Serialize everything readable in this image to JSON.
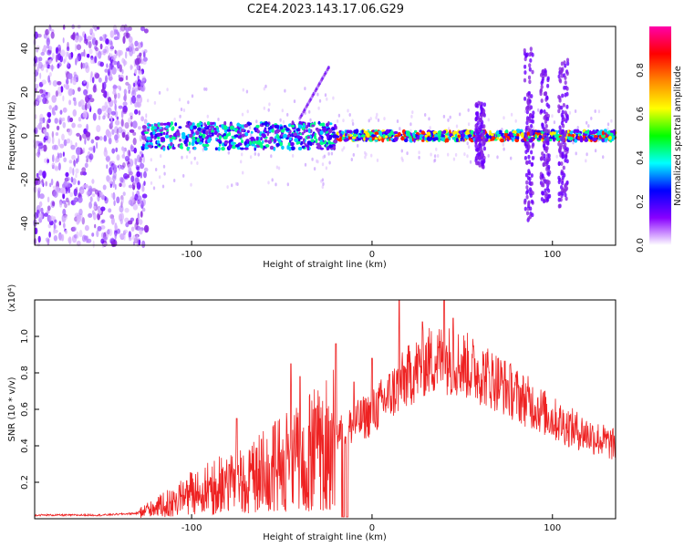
{
  "title": "C2E4.2023.143.17.06.G29",
  "chart_data": [
    {
      "type": "heatmap",
      "xlabel": "Height of straight line (km)",
      "ylabel": "Frequency (Hz)",
      "xlim": [
        -187,
        135
      ],
      "ylim": [
        -50,
        50
      ],
      "x_ticks": [
        -100,
        0,
        100
      ],
      "y_ticks": [
        -40,
        -20,
        0,
        20,
        40
      ],
      "colorbar": {
        "label": "Normalized spectral amplitude",
        "range": [
          0.0,
          1.0
        ],
        "ticks": [
          0.0,
          0.2,
          0.4,
          0.6,
          0.8
        ],
        "colors": [
          "#ffffff",
          "#8800ff",
          "#0000ff",
          "#00ffff",
          "#00ff00",
          "#ffff00",
          "#ff8800",
          "#ff0000",
          "#ff00aa"
        ]
      }
    },
    {
      "type": "line",
      "xlabel": "Height of straight line (km)",
      "ylabel": "SNR (10 * v/v)",
      "y_multiplier": "(x10⁴)",
      "xlim": [
        -187,
        135
      ],
      "ylim": [
        0,
        1.2
      ],
      "x_ticks": [
        -100,
        0,
        100
      ],
      "y_ticks": [
        0.2,
        0.4,
        0.6,
        0.8,
        1.0
      ],
      "color": "#ee2222",
      "envelope_x": [
        -187,
        -150,
        -130,
        -120,
        -110,
        -100,
        -90,
        -80,
        -70,
        -60,
        -50,
        -40,
        -30,
        -20,
        -10,
        0,
        10,
        20,
        30,
        40,
        50,
        60,
        70,
        80,
        90,
        100,
        110,
        120,
        130,
        135
      ],
      "envelope_y": [
        0.02,
        0.02,
        0.03,
        0.06,
        0.1,
        0.14,
        0.17,
        0.19,
        0.22,
        0.26,
        0.3,
        0.35,
        0.38,
        0.45,
        0.52,
        0.58,
        0.68,
        0.78,
        0.86,
        0.88,
        0.85,
        0.8,
        0.75,
        0.68,
        0.62,
        0.55,
        0.5,
        0.46,
        0.42,
        0.4
      ],
      "peaks_x": [
        -75,
        -45,
        -40,
        -20,
        -10,
        0,
        15,
        28,
        40,
        45
      ],
      "peaks_y": [
        0.55,
        0.85,
        0.78,
        0.96,
        0.75,
        0.88,
        1.2,
        1.08,
        1.2,
        1.1
      ]
    }
  ]
}
